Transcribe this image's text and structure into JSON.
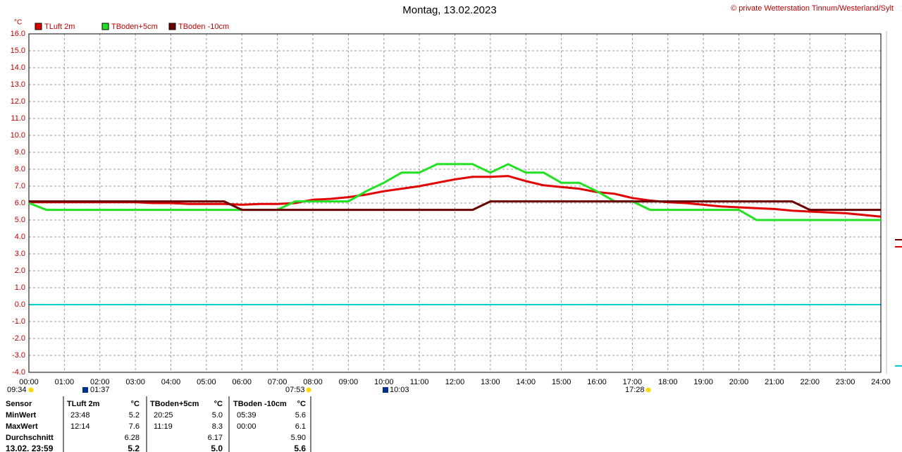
{
  "chart_data": {
    "type": "line",
    "title": "Montag, 13.02.2023",
    "copyright": "© private Wetterstation Tinnum/Westerland/Sylt",
    "y_unit": "°C",
    "x": [
      0,
      0.5,
      1,
      1.5,
      2,
      2.5,
      3,
      3.5,
      4,
      4.5,
      5,
      5.5,
      6,
      6.5,
      7,
      7.5,
      8,
      8.5,
      9,
      9.5,
      10,
      10.5,
      11,
      11.5,
      12,
      12.5,
      13,
      13.5,
      14,
      14.5,
      15,
      15.5,
      16,
      16.5,
      17,
      17.5,
      18,
      18.5,
      19,
      19.5,
      20,
      20.5,
      21,
      21.5,
      22,
      22.5,
      23,
      23.5,
      24
    ],
    "series": [
      {
        "name": "TLuft 2m",
        "color": "#e00000",
        "values": [
          6.05,
          6.05,
          6.05,
          6.05,
          6.05,
          6.05,
          6.05,
          6.0,
          6.0,
          5.95,
          5.95,
          5.95,
          5.9,
          5.95,
          5.95,
          6.0,
          6.2,
          6.25,
          6.35,
          6.5,
          6.7,
          6.85,
          7.0,
          7.2,
          7.4,
          7.55,
          7.55,
          7.6,
          7.3,
          7.05,
          6.95,
          6.85,
          6.65,
          6.55,
          6.3,
          6.15,
          6.05,
          6.0,
          5.9,
          5.8,
          5.75,
          5.7,
          5.65,
          5.55,
          5.5,
          5.45,
          5.4,
          5.3,
          5.2
        ]
      },
      {
        "name": "TBoden+5cm",
        "color": "#22e022",
        "values": [
          6.0,
          5.6,
          5.6,
          5.6,
          5.6,
          5.6,
          5.6,
          5.6,
          5.6,
          5.6,
          5.6,
          5.6,
          5.6,
          5.6,
          5.6,
          6.1,
          6.1,
          6.1,
          6.1,
          6.7,
          7.2,
          7.8,
          7.8,
          8.3,
          8.3,
          8.3,
          7.8,
          8.3,
          7.8,
          7.8,
          7.2,
          7.2,
          6.7,
          6.1,
          6.1,
          5.6,
          5.6,
          5.6,
          5.6,
          5.6,
          5.6,
          5.0,
          5.0,
          5.0,
          5.0,
          5.0,
          5.0,
          5.0,
          5.0
        ]
      },
      {
        "name": "TBoden -10cm",
        "color": "#6b0000",
        "values": [
          6.1,
          6.1,
          6.1,
          6.1,
          6.1,
          6.1,
          6.1,
          6.1,
          6.1,
          6.1,
          6.1,
          6.1,
          5.6,
          5.6,
          5.6,
          5.6,
          5.6,
          5.6,
          5.6,
          5.6,
          5.6,
          5.6,
          5.6,
          5.6,
          5.6,
          5.6,
          6.1,
          6.1,
          6.1,
          6.1,
          6.1,
          6.1,
          6.1,
          6.1,
          6.1,
          6.1,
          6.1,
          6.1,
          6.1,
          6.1,
          6.1,
          6.1,
          6.1,
          6.1,
          5.6,
          5.6,
          5.6,
          5.6,
          5.6
        ]
      }
    ],
    "zero_line_color": "#00d0d0",
    "grid": true,
    "xlim": [
      0,
      24
    ],
    "xticks": [
      {
        "value": 0,
        "label": "00:00"
      },
      {
        "value": 1,
        "label": "01:00"
      },
      {
        "value": 2,
        "label": "02:00"
      },
      {
        "value": 3,
        "label": "03:00"
      },
      {
        "value": 4,
        "label": "04:00"
      },
      {
        "value": 5,
        "label": "05:00"
      },
      {
        "value": 6,
        "label": "06:00"
      },
      {
        "value": 7,
        "label": "07:00"
      },
      {
        "value": 8,
        "label": "08:00"
      },
      {
        "value": 9,
        "label": "09:00"
      },
      {
        "value": 10,
        "label": "10:00"
      },
      {
        "value": 11,
        "label": "11:00"
      },
      {
        "value": 12,
        "label": "12:00"
      },
      {
        "value": 13,
        "label": "13:00"
      },
      {
        "value": 14,
        "label": "14:00"
      },
      {
        "value": 15,
        "label": "15:00"
      },
      {
        "value": 16,
        "label": "16:00"
      },
      {
        "value": 17,
        "label": "17:00"
      },
      {
        "value": 18,
        "label": "18:00"
      },
      {
        "value": 19,
        "label": "19:00"
      },
      {
        "value": 20,
        "label": "20:00"
      },
      {
        "value": 21,
        "label": "21:00"
      },
      {
        "value": 22,
        "label": "22:00"
      },
      {
        "value": 23,
        "label": "23:00"
      },
      {
        "value": 24,
        "label": "24:00"
      }
    ],
    "ylim": [
      -4,
      16
    ],
    "yticks": [
      {
        "value": -4,
        "label": "-4.0"
      },
      {
        "value": -3,
        "label": "-3.0"
      },
      {
        "value": -2,
        "label": "-2.0"
      },
      {
        "value": -1,
        "label": "-1.0"
      },
      {
        "value": 0,
        "label": "0.0"
      },
      {
        "value": 1,
        "label": "1.0"
      },
      {
        "value": 2,
        "label": "2.0"
      },
      {
        "value": 3,
        "label": "3.0"
      },
      {
        "value": 4,
        "label": "4.0"
      },
      {
        "value": 5,
        "label": "5.0"
      },
      {
        "value": 6,
        "label": "6.0"
      },
      {
        "value": 7,
        "label": "7.0"
      },
      {
        "value": 8,
        "label": "8.0"
      },
      {
        "value": 9,
        "label": "9.0"
      },
      {
        "value": 10,
        "label": "10.0"
      },
      {
        "value": 11,
        "label": "11.0"
      },
      {
        "value": 12,
        "label": "12.0"
      },
      {
        "value": 13,
        "label": "13.0"
      },
      {
        "value": 14,
        "label": "14.0"
      },
      {
        "value": 15,
        "label": "15.0"
      },
      {
        "value": 16,
        "label": "16.0"
      }
    ],
    "events": [
      "09:34",
      "01:37",
      "07:53",
      "10:03",
      "17:28"
    ]
  },
  "table": {
    "header": [
      "Sensor",
      "TLuft 2m",
      "°C",
      "TBoden+5cm",
      "°C",
      "TBoden -10cm",
      "°C"
    ],
    "rows": [
      [
        "MinWert",
        "23:48",
        "5.2",
        "20:25",
        "5.0",
        "05:39",
        "5.6"
      ],
      [
        "MaxWert",
        "12:14",
        "7.6",
        "11:19",
        "8.3",
        "00:00",
        "6.1"
      ],
      [
        "Durchschnitt",
        null,
        "6.28",
        null,
        "6.17",
        null,
        "5.90"
      ],
      [
        "13.02. 23:59",
        null,
        "5.2",
        null,
        "5.0",
        null,
        "5.6"
      ]
    ]
  }
}
